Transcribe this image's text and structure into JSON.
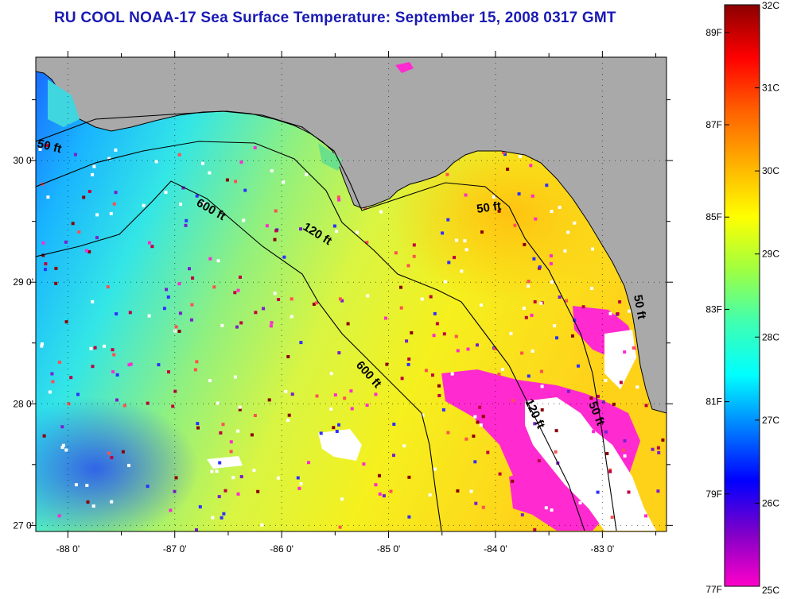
{
  "title": "RU COOL  NOAA-17  Sea Surface Temperature:  September 15, 2008 0317 GMT",
  "map": {
    "lon_range": [
      -88.3,
      -82.4
    ],
    "lat_range": [
      26.95,
      30.85
    ],
    "x_ticks": [
      {
        "value": -88,
        "label": "-88 0'"
      },
      {
        "value": -87,
        "label": "-87 0'"
      },
      {
        "value": -86,
        "label": "-86 0'"
      },
      {
        "value": -85,
        "label": "-85 0'"
      },
      {
        "value": -84,
        "label": "-84 0'"
      },
      {
        "value": -83,
        "label": "-83 0'"
      }
    ],
    "y_ticks": [
      {
        "value": 30,
        "label": "30 0'"
      },
      {
        "value": 29,
        "label": "29 0'"
      },
      {
        "value": 28,
        "label": "28 0'"
      },
      {
        "value": 27,
        "label": "27 0'"
      }
    ],
    "contour_labels": [
      {
        "text": "50 ft"
      },
      {
        "text": "600 ft"
      },
      {
        "text": "120 ft"
      },
      {
        "text": "50 ft"
      },
      {
        "text": "600 ft"
      },
      {
        "text": "120 ft"
      },
      {
        "text": "50 ft"
      },
      {
        "text": "50 ft"
      }
    ],
    "colors": {
      "land": "#a9a9a9",
      "no_data": "#ffffff",
      "cloud_cold": "#ff22cc",
      "coastline": "#000000"
    }
  },
  "colorbar": {
    "celsius": [
      "32C",
      "31C",
      "30C",
      "29C",
      "28C",
      "27C",
      "26C",
      "25C"
    ],
    "fahrenheit": [
      "89F",
      "87F",
      "85F",
      "83F",
      "81F",
      "79F",
      "77F"
    ],
    "celsius_values": [
      32,
      31,
      30,
      29,
      28,
      27,
      26,
      25
    ],
    "fahrenheit_values": [
      89,
      87,
      85,
      83,
      81,
      79,
      77
    ],
    "range_c": [
      25,
      32
    ],
    "stops": [
      "#ff00c8",
      "#8000c8",
      "#0000ff",
      "#0080ff",
      "#00ffff",
      "#40ffb0",
      "#a0ff40",
      "#ffff00",
      "#ffb000",
      "#ff6000",
      "#ff0000",
      "#8b0000"
    ]
  }
}
